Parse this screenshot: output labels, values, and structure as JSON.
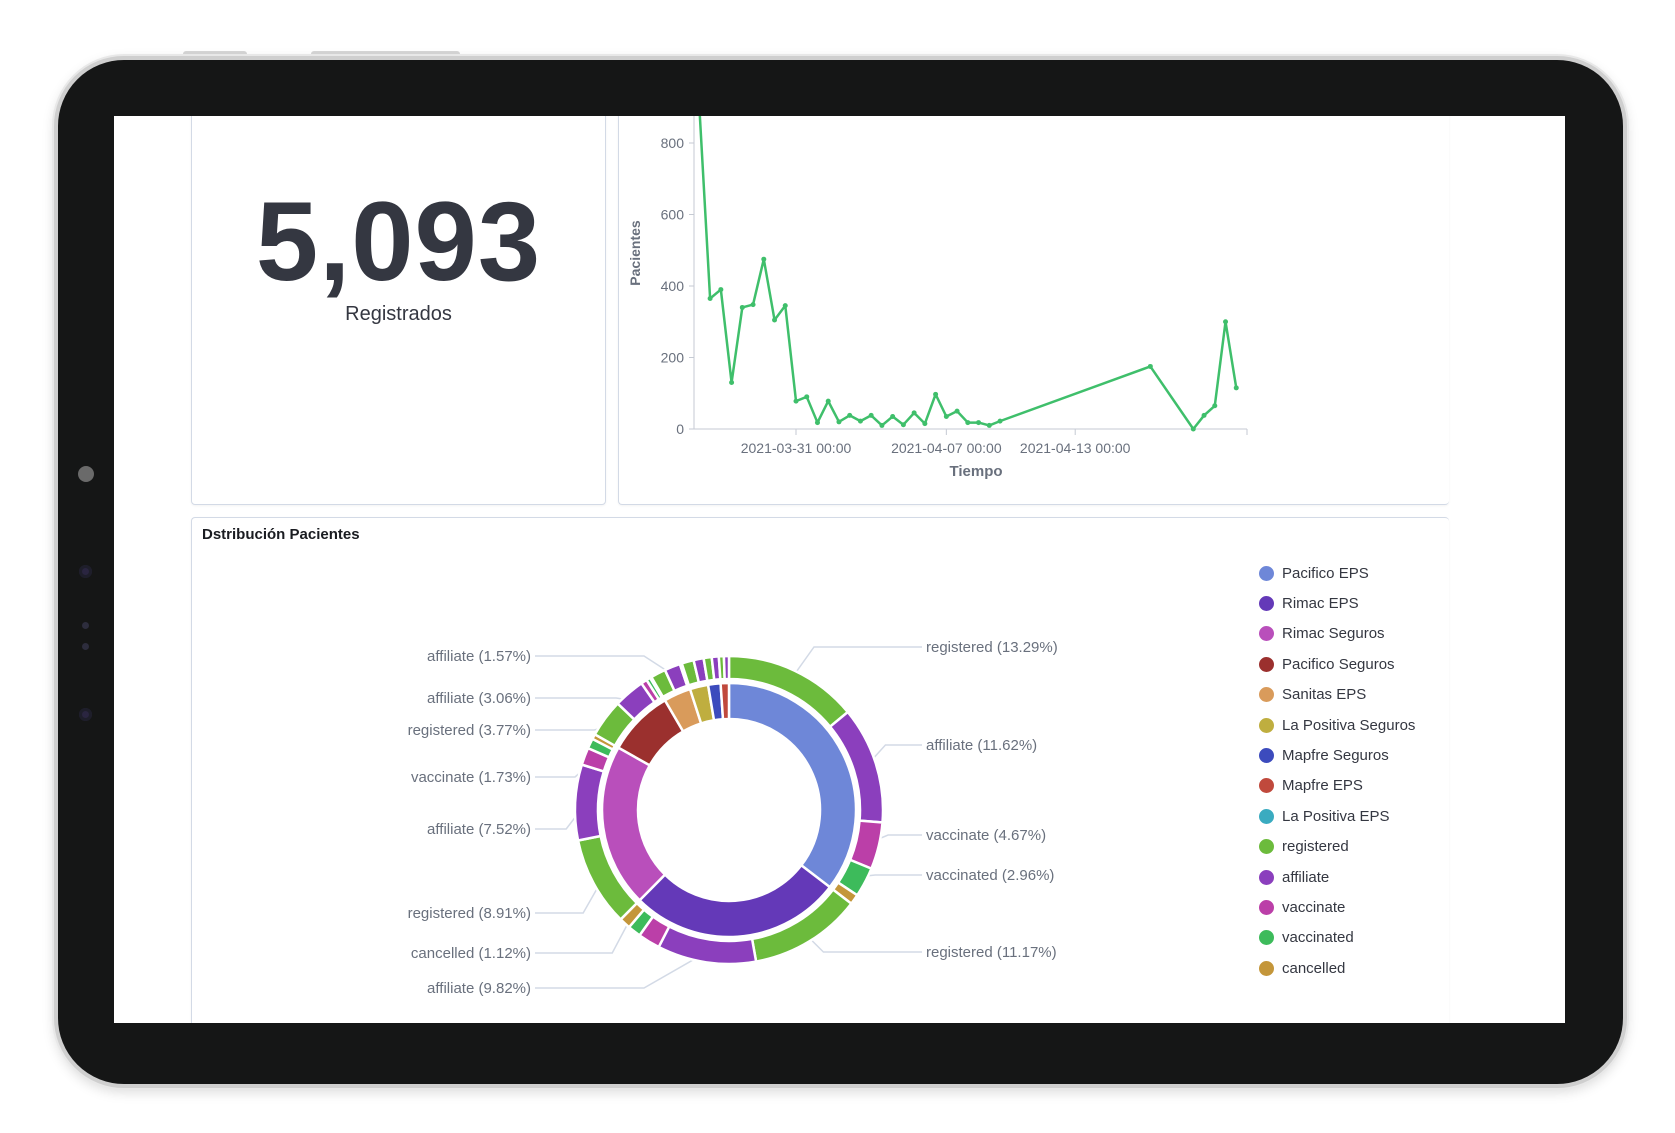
{
  "metric": {
    "value": "5,093",
    "label": "Registrados"
  },
  "distribution_title": "Dstribución Pacientes",
  "chart_data": [
    {
      "type": "line",
      "title": "",
      "xlabel": "Tiempo",
      "ylabel": "Pacientes",
      "ylim": [
        0,
        875
      ],
      "yticks": [
        "0",
        "200",
        "400",
        "600",
        "800"
      ],
      "xticks": [
        "2021-03-31 00:00",
        "2021-04-07 00:00",
        "2021-04-13 00:00"
      ],
      "color": "#3fbf6b",
      "x": [
        "2021-03-26 12:00",
        "2021-03-27 00:00",
        "2021-03-27 12:00",
        "2021-03-28 00:00",
        "2021-03-28 12:00",
        "2021-03-29 00:00",
        "2021-03-29 12:00",
        "2021-03-30 00:00",
        "2021-03-30 12:00",
        "2021-03-31 00:00",
        "2021-03-31 12:00",
        "2021-04-01 00:00",
        "2021-04-01 12:00",
        "2021-04-02 00:00",
        "2021-04-02 12:00",
        "2021-04-03 00:00",
        "2021-04-03 12:00",
        "2021-04-04 00:00",
        "2021-04-04 12:00",
        "2021-04-05 00:00",
        "2021-04-05 12:00",
        "2021-04-06 00:00",
        "2021-04-06 12:00",
        "2021-04-07 00:00",
        "2021-04-07 12:00",
        "2021-04-08 00:00",
        "2021-04-08 12:00",
        "2021-04-09 00:00",
        "2021-04-09 12:00",
        "2021-04-16 12:00",
        "2021-04-18 12:00",
        "2021-04-19 00:00",
        "2021-04-19 12:00",
        "2021-04-20 00:00",
        "2021-04-20 12:00"
      ],
      "values": [
        900,
        365,
        390,
        130,
        340,
        348,
        475,
        305,
        345,
        78,
        90,
        18,
        78,
        20,
        38,
        22,
        38,
        10,
        35,
        12,
        45,
        15,
        97,
        35,
        50,
        18,
        18,
        10,
        22,
        175,
        0,
        38,
        65,
        300,
        115
      ],
      "xrange": [
        "2021-03-26 06:00",
        "2021-04-21 00:00"
      ]
    },
    {
      "type": "pie",
      "title": "Dstribución Pacientes",
      "legend_position": "right",
      "legend": [
        {
          "name": "Pacifico EPS",
          "color": "#6e87d8"
        },
        {
          "name": "Rimac EPS",
          "color": "#6439b8"
        },
        {
          "name": "Rimac Seguros",
          "color": "#b94fbb"
        },
        {
          "name": "Pacifico Seguros",
          "color": "#9b302e"
        },
        {
          "name": "Sanitas EPS",
          "color": "#d99b5b"
        },
        {
          "name": "La Positiva Seguros",
          "color": "#bfae3f"
        },
        {
          "name": "Mapfre Seguros",
          "color": "#3c4bbd"
        },
        {
          "name": "Mapfre EPS",
          "color": "#c0493c"
        },
        {
          "name": "La Positiva EPS",
          "color": "#3aabc0"
        },
        {
          "name": "registered",
          "color": "#6cbb3c"
        },
        {
          "name": "affiliate",
          "color": "#8b3fbd"
        },
        {
          "name": "vaccinate",
          "color": "#bb3fa8"
        },
        {
          "name": "vaccinated",
          "color": "#3dbb5b"
        },
        {
          "name": "cancelled",
          "color": "#c4963a"
        }
      ],
      "groups": [
        {
          "name": "Pacifico EPS",
          "children": [
            {
              "name": "registered",
              "value": 13.29,
              "label": "registered (13.29%)"
            },
            {
              "name": "affiliate",
              "value": 11.62,
              "label": "affiliate (11.62%)"
            },
            {
              "name": "vaccinate",
              "value": 4.67,
              "label": "vaccinate (4.67%)"
            },
            {
              "name": "vaccinated",
              "value": 2.96,
              "label": "vaccinated (2.96%)"
            },
            {
              "name": "cancelled",
              "value": 1.0
            }
          ]
        },
        {
          "name": "Rimac EPS",
          "children": [
            {
              "name": "registered",
              "value": 11.17,
              "label": "registered (11.17%)"
            },
            {
              "name": "affiliate",
              "value": 9.82,
              "label": "affiliate (9.82%)"
            },
            {
              "name": "vaccinate",
              "value": 2.2
            },
            {
              "name": "vaccinated",
              "value": 1.3
            },
            {
              "name": "cancelled",
              "value": 1.12,
              "label": "cancelled (1.12%)"
            }
          ]
        },
        {
          "name": "Rimac Seguros",
          "children": [
            {
              "name": "registered",
              "value": 8.91,
              "label": "registered (8.91%)"
            },
            {
              "name": "affiliate",
              "value": 7.52,
              "label": "affiliate (7.52%)"
            },
            {
              "name": "vaccinate",
              "value": 1.73,
              "label": "vaccinate (1.73%)"
            },
            {
              "name": "vaccinated",
              "value": 1.0
            },
            {
              "name": "cancelled",
              "value": 0.5
            }
          ]
        },
        {
          "name": "Pacifico Seguros",
          "children": [
            {
              "name": "registered",
              "value": 3.77,
              "label": "registered (3.77%)"
            },
            {
              "name": "affiliate",
              "value": 3.06,
              "label": "affiliate (3.06%)"
            },
            {
              "name": "vaccinate",
              "value": 0.6
            },
            {
              "name": "vaccinated",
              "value": 0.4
            },
            {
              "name": "cancelled",
              "value": 0.15
            }
          ]
        },
        {
          "name": "Sanitas EPS",
          "children": [
            {
              "name": "registered",
              "value": 1.5
            },
            {
              "name": "affiliate",
              "value": 1.57,
              "label": "affiliate (1.57%)"
            },
            {
              "name": "vaccinate",
              "value": 0.2
            }
          ]
        },
        {
          "name": "La Positiva Seguros",
          "children": [
            {
              "name": "registered",
              "value": 1.2
            },
            {
              "name": "affiliate",
              "value": 1.0
            }
          ]
        },
        {
          "name": "Mapfre Seguros",
          "children": [
            {
              "name": "registered",
              "value": 0.8
            },
            {
              "name": "affiliate",
              "value": 0.7
            }
          ]
        },
        {
          "name": "Mapfre EPS",
          "children": [
            {
              "name": "registered",
              "value": 0.5
            },
            {
              "name": "affiliate",
              "value": 0.5
            }
          ]
        }
      ]
    }
  ]
}
